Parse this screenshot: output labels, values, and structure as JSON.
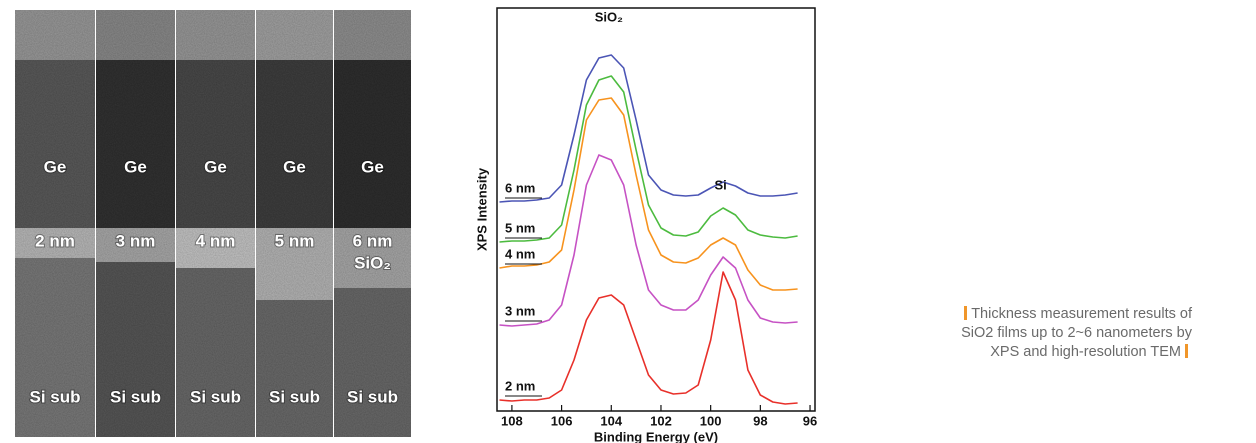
{
  "tem": {
    "panels": [
      {
        "layer": "Ge",
        "oxide": "2 nm",
        "substrate": "Si sub"
      },
      {
        "layer": "Ge",
        "oxide": "3 nm",
        "substrate": "Si sub"
      },
      {
        "layer": "Ge",
        "oxide": "4 nm",
        "substrate": "Si sub"
      },
      {
        "layer": "Ge",
        "oxide": "5 nm",
        "substrate": "Si sub"
      },
      {
        "layer": "Ge",
        "oxide": "6 nm",
        "oxide_material": "SiO₂",
        "substrate": "Si sub"
      }
    ]
  },
  "chart_data": {
    "type": "line",
    "x_label": "Binding Energy (eV)",
    "y_label": "XPS Intensity",
    "annotations": [
      {
        "text": "SiO₂",
        "x": 104.1
      },
      {
        "text": "Si",
        "x": 99.6
      }
    ],
    "x": [
      108.5,
      108,
      107.5,
      107,
      106.5,
      106,
      105.5,
      105,
      104.5,
      104,
      103.5,
      103,
      102.5,
      102,
      101.5,
      101,
      100.5,
      100,
      99.5,
      99,
      98.5,
      98,
      97.5,
      97,
      96.5
    ],
    "xlim": [
      108.6,
      95.8
    ],
    "xticks": [
      108,
      106,
      104,
      102,
      100,
      98,
      96
    ],
    "ylim": [
      17,
      420
    ],
    "series": [
      {
        "name": "2 nm",
        "color": "#e8302a",
        "values": [
          28,
          27,
          28,
          28,
          30,
          38,
          68,
          108,
          130,
          133,
          123,
          88,
          53,
          38,
          34,
          35,
          43,
          88,
          156,
          128,
          58,
          33,
          26,
          24,
          25
        ]
      },
      {
        "name": "3 nm",
        "color": "#c652c4",
        "values": [
          103,
          102,
          103,
          104,
          108,
          123,
          173,
          243,
          273,
          268,
          243,
          183,
          138,
          123,
          118,
          118,
          128,
          153,
          171,
          160,
          128,
          110,
          106,
          105,
          106
        ]
      },
      {
        "name": "4 nm",
        "color": "#f7931e",
        "values": [
          160,
          162,
          162,
          163,
          166,
          178,
          238,
          308,
          328,
          330,
          313,
          253,
          198,
          173,
          166,
          165,
          170,
          183,
          190,
          183,
          158,
          143,
          138,
          138,
          139
        ]
      },
      {
        "name": "5 nm",
        "color": "#4cbb3f",
        "values": [
          186,
          187,
          187,
          188,
          190,
          203,
          258,
          323,
          348,
          352,
          336,
          278,
          223,
          200,
          193,
          192,
          196,
          212,
          220,
          213,
          198,
          193,
          191,
          190,
          192
        ]
      },
      {
        "name": "6 nm",
        "color": "#4b55b5",
        "values": [
          226,
          227,
          227,
          228,
          230,
          243,
          293,
          348,
          370,
          373,
          360,
          308,
          253,
          238,
          233,
          232,
          233,
          240,
          246,
          242,
          235,
          232,
          232,
          233,
          235
        ]
      }
    ]
  },
  "caption": "Thickness measurement results of SiO2 films up to 2~6 nanometers by XPS and high-resolution TEM"
}
